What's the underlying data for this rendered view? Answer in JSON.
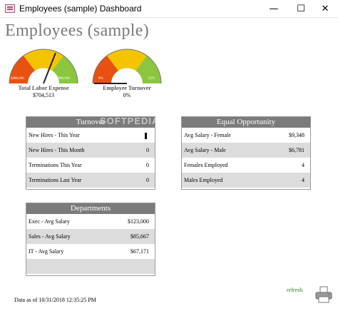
{
  "window": {
    "title": "Employees (sample) Dashboard"
  },
  "page": {
    "title": "Employees (sample)"
  },
  "gauges": [
    {
      "label": "Total Labor Expense",
      "value": "$704,513",
      "min_label": "$400,000",
      "max_label": "$900,000",
      "fraction": 0.62
    },
    {
      "label": "Employee Turnover",
      "value": "0%",
      "min_label": "0%",
      "max_label": "25%",
      "fraction": 0.0
    }
  ],
  "turnover": {
    "title": "Turnover",
    "rows": [
      {
        "label": "New Hires - This Year",
        "value": ""
      },
      {
        "label": "New Hires - This Month",
        "value": "0"
      },
      {
        "label": "Terminations This Year",
        "value": "0"
      },
      {
        "label": "Terminations Last Year",
        "value": "0"
      }
    ]
  },
  "equal_opportunity": {
    "title": "Equal Opportunity",
    "rows": [
      {
        "label": "Avg Salary - Female",
        "value": "$9,348"
      },
      {
        "label": "Avg Salary - Male",
        "value": "$6,781"
      },
      {
        "label": "Females Employed",
        "value": "4"
      },
      {
        "label": "Males Employed",
        "value": "4"
      }
    ]
  },
  "departments": {
    "title": "Departments",
    "rows": [
      {
        "label": "Exec - Avg Salary",
        "value": "$123,000"
      },
      {
        "label": "Sales - Avg Salary",
        "value": "$85,667"
      },
      {
        "label": "IT - Avg Salary",
        "value": "$67,171"
      },
      {
        "label": "",
        "value": ""
      }
    ]
  },
  "footer": {
    "data_as_of": "Data as of 10/31/2018 12:35:25 PM",
    "refresh": "refresh"
  },
  "watermark": "SOFTPEDIA",
  "colors": {
    "gauge_red": "#e8510f",
    "gauge_yellow": "#f5c400",
    "gauge_green": "#8cc63f",
    "header_gray": "#7b7b7b",
    "row_alt": "#dcdcdc",
    "link_green": "#2c8a1e"
  }
}
